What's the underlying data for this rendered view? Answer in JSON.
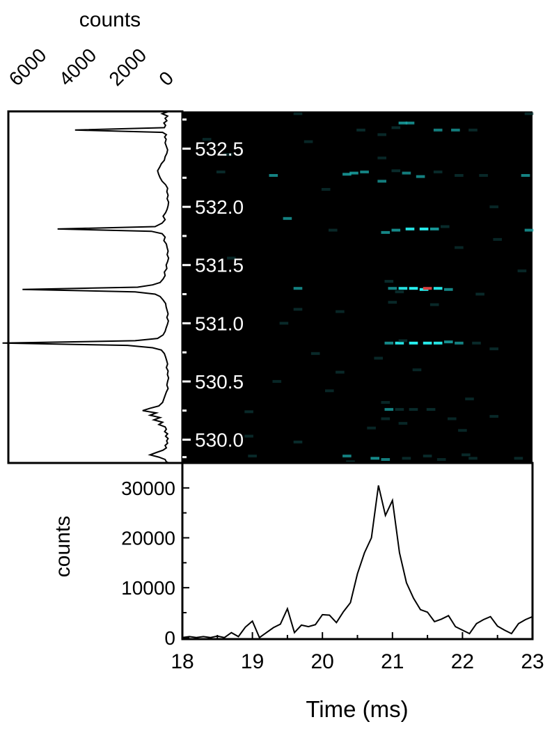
{
  "chart_data": [
    {
      "id": "side-spectrum",
      "type": "line",
      "orientation": "horizontal",
      "xlabel": "counts",
      "ylabel": "",
      "x_axis_reversed": true,
      "x_ticks": [
        6000,
        4000,
        2000,
        0
      ],
      "x_tick_labels": [
        "6000",
        "4000",
        "2000",
        "0"
      ],
      "xlim": [
        0,
        6500
      ],
      "ylim": [
        529.8,
        532.82
      ],
      "grid": false,
      "series": [
        {
          "points": [
            [
              532.82,
              150
            ],
            [
              532.8,
              420
            ],
            [
              532.78,
              200
            ],
            [
              532.76,
              300
            ],
            [
              532.74,
              230
            ],
            [
              532.72,
              350
            ],
            [
              532.7,
              280
            ],
            [
              532.68,
              330
            ],
            [
              532.66,
              3900
            ],
            [
              532.64,
              400
            ],
            [
              532.62,
              250
            ],
            [
              532.6,
              320
            ],
            [
              532.58,
              260
            ],
            [
              532.55,
              300
            ],
            [
              532.52,
              250
            ],
            [
              532.49,
              200
            ],
            [
              532.46,
              230
            ],
            [
              532.43,
              300
            ],
            [
              532.4,
              330
            ],
            [
              532.37,
              450
            ],
            [
              532.34,
              520
            ],
            [
              532.31,
              600
            ],
            [
              532.28,
              560
            ],
            [
              532.25,
              500
            ],
            [
              532.22,
              420
            ],
            [
              532.19,
              280
            ],
            [
              532.16,
              200
            ],
            [
              532.13,
              230
            ],
            [
              532.1,
              180
            ],
            [
              532.07,
              220
            ],
            [
              532.04,
              160
            ],
            [
              532.01,
              180
            ],
            [
              531.98,
              220
            ],
            [
              531.95,
              280
            ],
            [
              531.92,
              380
            ],
            [
              531.89,
              300
            ],
            [
              531.86,
              420
            ],
            [
              531.83,
              700
            ],
            [
              531.81,
              4600
            ],
            [
              531.79,
              850
            ],
            [
              531.77,
              420
            ],
            [
              531.74,
              300
            ],
            [
              531.71,
              350
            ],
            [
              531.68,
              250
            ],
            [
              531.65,
              220
            ],
            [
              531.62,
              180
            ],
            [
              531.59,
              220
            ],
            [
              531.56,
              160
            ],
            [
              531.53,
              200
            ],
            [
              531.5,
              260
            ],
            [
              531.47,
              230
            ],
            [
              531.44,
              330
            ],
            [
              531.41,
              300
            ],
            [
              531.38,
              380
            ],
            [
              531.35,
              500
            ],
            [
              531.33,
              800
            ],
            [
              531.31,
              1400
            ],
            [
              531.29,
              6000
            ],
            [
              531.27,
              1500
            ],
            [
              531.25,
              700
            ],
            [
              531.23,
              500
            ],
            [
              531.2,
              380
            ],
            [
              531.17,
              280
            ],
            [
              531.14,
              260
            ],
            [
              531.11,
              220
            ],
            [
              531.08,
              180
            ],
            [
              531.05,
              230
            ],
            [
              531.02,
              170
            ],
            [
              530.99,
              210
            ],
            [
              530.96,
              260
            ],
            [
              530.93,
              300
            ],
            [
              530.9,
              380
            ],
            [
              530.87,
              600
            ],
            [
              530.85,
              1500
            ],
            [
              530.83,
              6800
            ],
            [
              530.81,
              1800
            ],
            [
              530.79,
              800
            ],
            [
              530.77,
              450
            ],
            [
              530.74,
              330
            ],
            [
              530.71,
              280
            ],
            [
              530.68,
              240
            ],
            [
              530.65,
              200
            ],
            [
              530.62,
              250
            ],
            [
              530.59,
              180
            ],
            [
              530.56,
              210
            ],
            [
              530.53,
              160
            ],
            [
              530.5,
              200
            ],
            [
              530.47,
              230
            ],
            [
              530.44,
              180
            ],
            [
              530.41,
              250
            ],
            [
              530.38,
              300
            ],
            [
              530.35,
              350
            ],
            [
              530.32,
              400
            ],
            [
              530.29,
              550
            ],
            [
              530.27,
              900
            ],
            [
              530.25,
              1200
            ],
            [
              530.23,
              650
            ],
            [
              530.21,
              900
            ],
            [
              530.19,
              500
            ],
            [
              530.17,
              750
            ],
            [
              530.15,
              400
            ],
            [
              530.13,
              550
            ],
            [
              530.11,
              300
            ],
            [
              530.09,
              250
            ],
            [
              530.07,
              320
            ],
            [
              530.05,
              200
            ],
            [
              530.03,
              280
            ],
            [
              530.01,
              180
            ],
            [
              529.99,
              240
            ],
            [
              529.97,
              200
            ],
            [
              529.95,
              300
            ],
            [
              529.93,
              250
            ],
            [
              529.91,
              380
            ],
            [
              529.89,
              650
            ],
            [
              529.87,
              900
            ],
            [
              529.85,
              550
            ],
            [
              529.83,
              300
            ],
            [
              529.81,
              250
            ],
            [
              529.8,
              150
            ]
          ]
        }
      ]
    },
    {
      "id": "heatmap",
      "type": "heatmap",
      "xlim": [
        18,
        23
      ],
      "ylim": [
        529.8,
        532.82
      ],
      "y_ticks": [
        532.5,
        532.0,
        531.5,
        531.0,
        530.5,
        530.0
      ],
      "y_tick_labels": [
        "532.5",
        "532.0",
        "531.5",
        "531.0",
        "530.5",
        "530.0"
      ],
      "y_minor_ticks": [
        532.75,
        532.25,
        531.75,
        531.25,
        530.75,
        530.25,
        529.85
      ],
      "colors": {
        "background": "#000000",
        "low": "#0d3b3b",
        "mid": "#1aa6a6",
        "high": "#27f0f0",
        "peak": "#d94040"
      },
      "cells": [
        [
          21.15,
          532.72,
          0.6
        ],
        [
          21.25,
          532.72,
          0.5
        ],
        [
          19.65,
          532.8,
          0.25
        ],
        [
          22.95,
          532.8,
          0.3
        ],
        [
          20.55,
          532.66,
          0.35
        ],
        [
          21.65,
          532.66,
          0.4
        ],
        [
          21.9,
          532.66,
          0.4
        ],
        [
          22.15,
          532.66,
          0.3
        ],
        [
          20.85,
          532.62,
          0.25
        ],
        [
          21.05,
          532.68,
          0.3
        ],
        [
          18.65,
          532.45,
          0.25
        ],
        [
          18.55,
          532.3,
          0.3
        ],
        [
          19.3,
          532.27,
          0.45
        ],
        [
          20.35,
          532.28,
          0.55
        ],
        [
          20.45,
          532.29,
          0.6
        ],
        [
          20.6,
          532.3,
          0.45
        ],
        [
          21.05,
          532.31,
          0.35
        ],
        [
          21.2,
          532.29,
          0.4
        ],
        [
          21.4,
          532.26,
          0.45
        ],
        [
          21.65,
          532.3,
          0.3
        ],
        [
          20.85,
          532.22,
          0.4
        ],
        [
          21.95,
          532.27,
          0.3
        ],
        [
          22.3,
          532.27,
          0.25
        ],
        [
          22.9,
          532.27,
          0.45
        ],
        [
          20.05,
          532.15,
          0.2
        ],
        [
          20.85,
          532.42,
          0.2
        ],
        [
          19.5,
          531.9,
          0.45
        ],
        [
          20.9,
          531.78,
          0.5
        ],
        [
          21.05,
          531.8,
          0.55
        ],
        [
          21.25,
          531.81,
          0.75
        ],
        [
          21.45,
          531.81,
          0.85
        ],
        [
          21.6,
          531.81,
          0.7
        ],
        [
          21.75,
          531.83,
          0.35
        ],
        [
          22.95,
          531.8,
          0.45
        ],
        [
          22.5,
          531.72,
          0.2
        ],
        [
          20.15,
          531.8,
          0.25
        ],
        [
          19.65,
          531.3,
          0.45
        ],
        [
          21.0,
          531.3,
          0.5
        ],
        [
          21.15,
          531.3,
          0.75
        ],
        [
          21.3,
          531.3,
          0.9
        ],
        [
          21.45,
          531.29,
          0.95
        ],
        [
          21.5,
          531.3,
          1.0
        ],
        [
          21.65,
          531.3,
          0.8
        ],
        [
          21.8,
          531.29,
          0.5
        ],
        [
          20.95,
          531.36,
          0.35
        ],
        [
          22.25,
          531.25,
          0.3
        ],
        [
          21.1,
          531.27,
          0.35
        ],
        [
          19.65,
          531.12,
          0.25
        ],
        [
          21.0,
          531.18,
          0.25
        ],
        [
          21.6,
          531.16,
          0.25
        ],
        [
          19.45,
          531.0,
          0.3
        ],
        [
          20.95,
          530.83,
          0.55
        ],
        [
          21.1,
          530.83,
          0.8
        ],
        [
          21.3,
          530.83,
          0.9
        ],
        [
          21.5,
          530.83,
          0.85
        ],
        [
          21.65,
          530.83,
          0.8
        ],
        [
          21.8,
          530.84,
          0.6
        ],
        [
          21.95,
          530.83,
          0.45
        ],
        [
          22.2,
          530.83,
          0.3
        ],
        [
          21.15,
          530.85,
          0.35
        ],
        [
          19.9,
          530.74,
          0.3
        ],
        [
          20.8,
          530.7,
          0.25
        ],
        [
          20.25,
          530.58,
          0.25
        ],
        [
          20.1,
          530.42,
          0.2
        ],
        [
          18.95,
          530.24,
          0.3
        ],
        [
          20.95,
          530.26,
          0.45
        ],
        [
          21.1,
          530.26,
          0.3
        ],
        [
          21.3,
          530.26,
          0.35
        ],
        [
          21.55,
          530.26,
          0.35
        ],
        [
          20.9,
          530.18,
          0.25
        ],
        [
          21.15,
          530.14,
          0.2
        ],
        [
          21.85,
          530.18,
          0.2
        ],
        [
          20.7,
          530.1,
          0.2
        ],
        [
          22.45,
          530.2,
          0.25
        ],
        [
          22.0,
          530.08,
          0.2
        ],
        [
          19.65,
          529.98,
          0.35
        ],
        [
          18.95,
          530.03,
          0.25
        ],
        [
          20.35,
          529.86,
          0.4
        ],
        [
          20.75,
          529.84,
          0.55
        ],
        [
          20.9,
          529.83,
          0.4
        ],
        [
          21.2,
          529.84,
          0.3
        ],
        [
          21.5,
          529.86,
          0.3
        ],
        [
          22.05,
          529.87,
          0.3
        ],
        [
          22.15,
          529.84,
          0.25
        ],
        [
          20.4,
          529.81,
          0.3
        ],
        [
          21.7,
          529.83,
          0.2
        ],
        [
          22.8,
          529.84,
          0.25
        ],
        [
          19.0,
          529.86,
          0.25
        ],
        [
          18.35,
          532.58,
          0.2
        ],
        [
          19.8,
          532.56,
          0.2
        ],
        [
          22.45,
          532.0,
          0.2
        ],
        [
          21.95,
          531.65,
          0.2
        ],
        [
          18.7,
          531.56,
          0.2
        ],
        [
          22.85,
          531.45,
          0.2
        ],
        [
          20.25,
          531.1,
          0.2
        ],
        [
          22.45,
          530.78,
          0.25
        ],
        [
          22.1,
          530.35,
          0.2
        ],
        [
          19.35,
          530.5,
          0.2
        ],
        [
          21.35,
          530.6,
          0.2
        ],
        [
          20.9,
          530.32,
          0.2
        ]
      ]
    },
    {
      "id": "time-profile",
      "type": "line",
      "xlabel": "Time (ms)",
      "ylabel": "counts",
      "xlim": [
        18,
        23
      ],
      "ylim": [
        -300,
        35000
      ],
      "x_ticks": [
        18,
        19,
        20,
        21,
        22,
        23
      ],
      "x_tick_labels": [
        "18",
        "19",
        "20",
        "21",
        "22",
        "23"
      ],
      "y_ticks": [
        0,
        10000,
        20000,
        30000
      ],
      "y_tick_labels": [
        "0",
        "10000",
        "20000",
        "30000"
      ],
      "grid": false,
      "series": [
        {
          "x": [
            18.0,
            18.1,
            18.2,
            18.3,
            18.4,
            18.5,
            18.6,
            18.7,
            18.8,
            18.9,
            19.0,
            19.1,
            19.2,
            19.3,
            19.4,
            19.5,
            19.6,
            19.7,
            19.8,
            19.9,
            20.0,
            20.1,
            20.2,
            20.3,
            20.4,
            20.5,
            20.6,
            20.7,
            20.8,
            20.9,
            21.0,
            21.1,
            21.2,
            21.3,
            21.4,
            21.5,
            21.6,
            21.7,
            21.8,
            21.9,
            22.0,
            22.1,
            22.2,
            22.3,
            22.4,
            22.5,
            22.6,
            22.7,
            22.8,
            22.9,
            23.0
          ],
          "y": [
            0,
            200,
            0,
            200,
            0,
            300,
            0,
            1000,
            200,
            2100,
            3300,
            0,
            1000,
            2000,
            2700,
            5800,
            1000,
            2500,
            2200,
            2600,
            4600,
            4500,
            3000,
            5200,
            7000,
            12800,
            17000,
            20000,
            30500,
            24500,
            27500,
            17000,
            11000,
            7900,
            5600,
            5100,
            3200,
            3700,
            4400,
            2200,
            1500,
            800,
            2800,
            3600,
            4200,
            2300,
            1500,
            800,
            2800,
            3600,
            4200
          ]
        }
      ]
    }
  ]
}
